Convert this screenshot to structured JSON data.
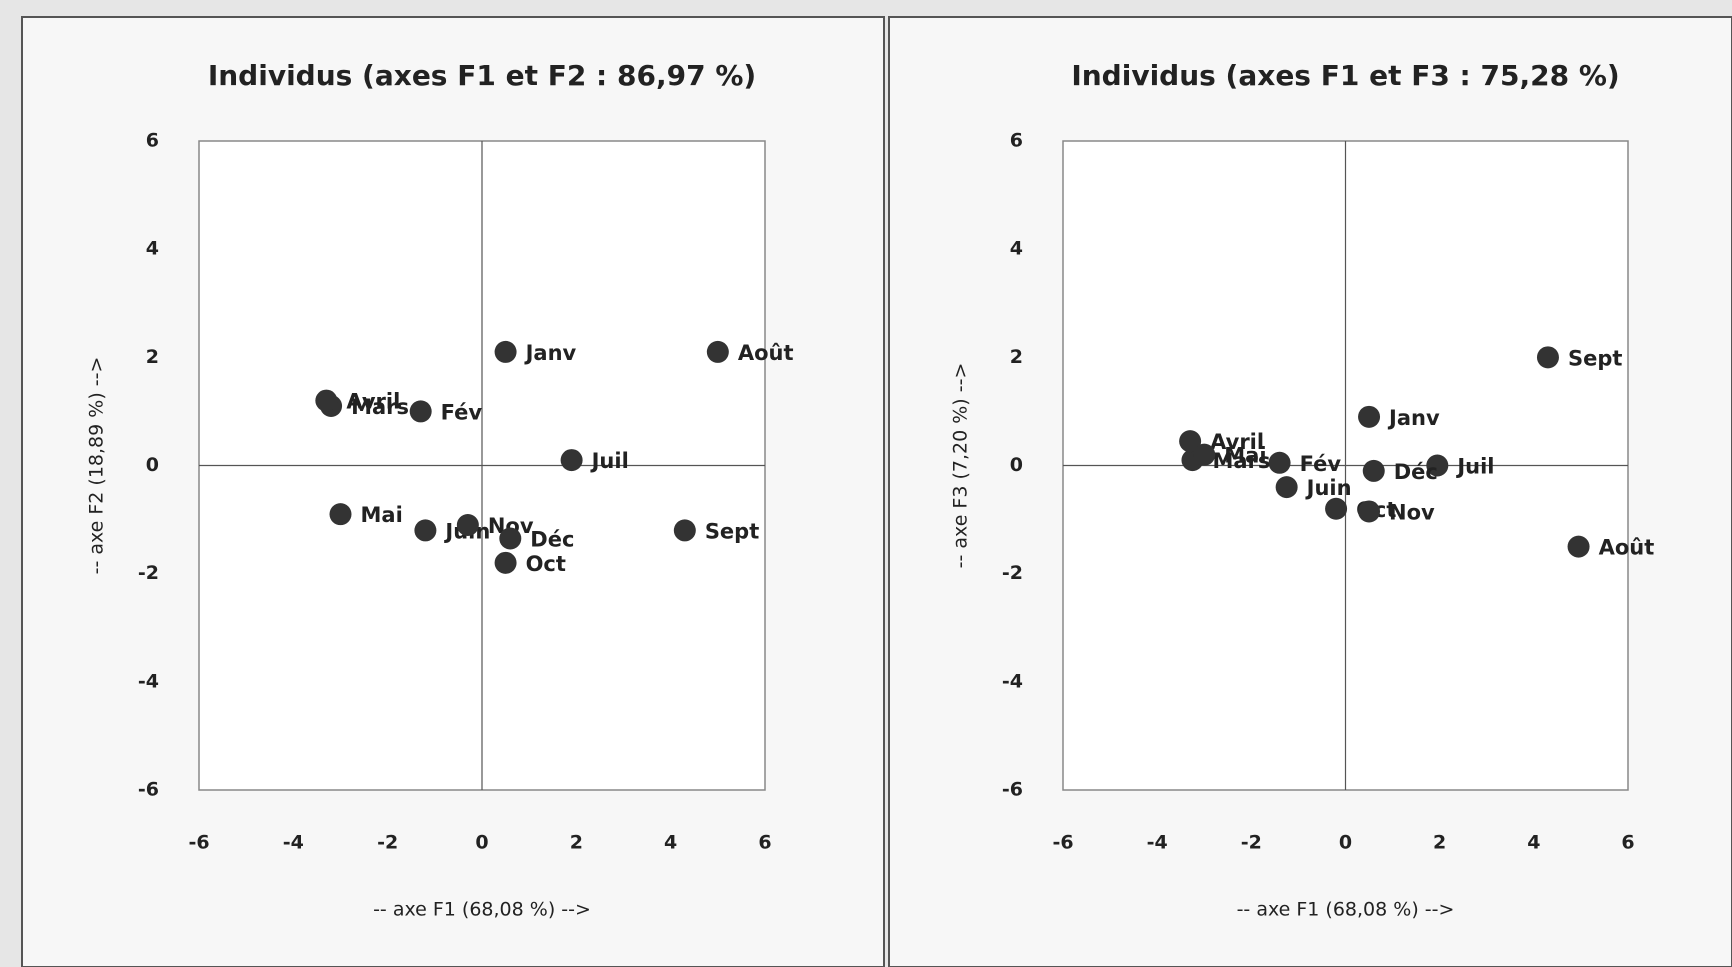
{
  "chart_data": [
    {
      "type": "scatter",
      "title": "Individus (axes F1 et F2 : 86,97 %)",
      "xlabel": "-- axe F1 (68,08 %) -->",
      "ylabel": "-- axe F2 (18,89 %) -->",
      "xlim": [
        -6,
        6
      ],
      "ylim": [
        -6,
        6
      ],
      "xticks": [
        -6,
        -4,
        -2,
        0,
        2,
        4,
        6
      ],
      "yticks": [
        -6,
        -4,
        -2,
        0,
        2,
        4,
        6
      ],
      "color": "#333333",
      "labels": [
        "Janv",
        "Fév",
        "Mars",
        "Avril",
        "Mai",
        "Juin",
        "Juil",
        "Août",
        "Sept",
        "Oct",
        "Nov",
        "Déc"
      ],
      "x": [
        0.5,
        -1.3,
        -3.2,
        -3.3,
        -3.0,
        -1.2,
        1.9,
        5.0,
        4.3,
        0.5,
        -0.3,
        0.6
      ],
      "y": [
        2.1,
        1.0,
        1.1,
        1.2,
        -0.9,
        -1.2,
        0.1,
        2.1,
        -1.2,
        -1.8,
        -1.1,
        -1.35
      ]
    },
    {
      "type": "scatter",
      "title": "Individus (axes F1 et F3 : 75,28 %)",
      "xlabel": "-- axe F1 (68,08 %) -->",
      "ylabel": "-- axe F3 (7,20 %) -->",
      "xlim": [
        -6,
        6
      ],
      "ylim": [
        -6,
        6
      ],
      "xticks": [
        -6,
        -4,
        -2,
        0,
        2,
        4,
        6
      ],
      "yticks": [
        -6,
        -4,
        -2,
        0,
        2,
        4,
        6
      ],
      "color": "#333333",
      "labels": [
        "Janv",
        "Fév",
        "Mars",
        "Avril",
        "Mai",
        "Juin",
        "Juil",
        "Août",
        "Sept",
        "Oct",
        "Nov",
        "Déc"
      ],
      "x": [
        0.5,
        -1.4,
        -3.25,
        -3.3,
        -3.0,
        -1.25,
        1.95,
        4.95,
        4.3,
        -0.2,
        0.5,
        0.6
      ],
      "y": [
        0.9,
        0.05,
        0.1,
        0.45,
        0.2,
        -0.4,
        0.0,
        -1.5,
        2.0,
        -0.8,
        -0.85,
        -0.1
      ]
    }
  ]
}
